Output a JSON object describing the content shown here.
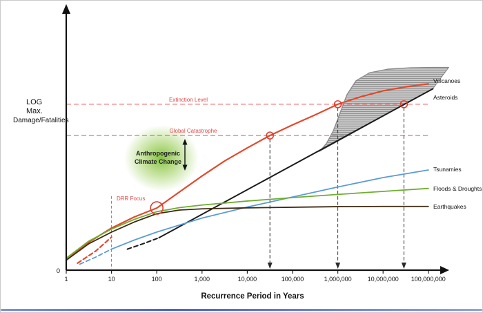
{
  "chart_data": {
    "type": "line",
    "title": "",
    "xlabel": "Recurrence Period in Years",
    "ylabel": "LOG Max. Damage/Fatalities",
    "ylabel_lines": [
      "LOG",
      "Max.",
      "Damage/Fatalities"
    ],
    "y_origin_label": "0",
    "x_scale": "log10",
    "x_tick_labels": [
      "1",
      "10",
      "100",
      "1,000",
      "10,000",
      "100,000",
      "1,000,000",
      "10,000,000",
      "100,000,000"
    ],
    "series": [
      {
        "name": "Anthropogenic Climate Change",
        "color": "#e2492c",
        "width": 2.2,
        "label_v": null,
        "dash_lead": [
          [
            0.25,
            0.035
          ],
          [
            0.65,
            0.095
          ],
          [
            1.0,
            0.165
          ]
        ],
        "points": [
          [
            0,
            0.05
          ],
          [
            0.5,
            0.14
          ],
          [
            1,
            0.21
          ],
          [
            1.5,
            0.265
          ],
          [
            2,
            0.31
          ],
          [
            2.5,
            0.39
          ],
          [
            3,
            0.47
          ],
          [
            3.5,
            0.545
          ],
          [
            4,
            0.61
          ],
          [
            4.5,
            0.672
          ],
          [
            5,
            0.725
          ],
          [
            5.5,
            0.775
          ],
          [
            6,
            0.828
          ],
          [
            6.5,
            0.865
          ],
          [
            7,
            0.895
          ],
          [
            7.5,
            0.915
          ],
          [
            8,
            0.93
          ]
        ]
      },
      {
        "name": "Volcanoes",
        "color": "#8a8a8a",
        "width": 1.4,
        "label_v": 0.945,
        "points": [
          [
            5.6,
            0.593
          ],
          [
            5.75,
            0.633
          ],
          [
            5.9,
            0.695
          ],
          [
            6.05,
            0.785
          ],
          [
            6.2,
            0.875
          ],
          [
            6.4,
            0.945
          ],
          [
            6.7,
            0.985
          ],
          [
            7.1,
            1.003
          ],
          [
            7.6,
            1.01
          ],
          [
            8.1,
            1.012
          ],
          [
            8.45,
            1.012
          ]
        ],
        "area_close": [
          [
            8.1,
            0.905
          ]
        ]
      },
      {
        "name": "Asteroids",
        "color": "#1c1c1c",
        "width": 2,
        "label_v": 0.862,
        "dash_lead": [
          [
            1.35,
            0.105
          ],
          [
            1.7,
            0.132
          ],
          [
            2.05,
            0.162
          ]
        ],
        "points": [
          [
            2.05,
            0.162
          ],
          [
            8.1,
            0.905
          ]
        ]
      },
      {
        "name": "Tsunamies",
        "color": "#5b9bd5",
        "width": 1.8,
        "label_v": 0.503,
        "dash_lead": [
          [
            0.3,
            0.03
          ],
          [
            0.65,
            0.065
          ],
          [
            1,
            0.105
          ]
        ],
        "points": [
          [
            1,
            0.105
          ],
          [
            1.5,
            0.15
          ],
          [
            2,
            0.19
          ],
          [
            3,
            0.26
          ],
          [
            4,
            0.315
          ],
          [
            5,
            0.365
          ],
          [
            6,
            0.415
          ],
          [
            7,
            0.462
          ],
          [
            8,
            0.5
          ]
        ]
      },
      {
        "name": "Floods & Droughts",
        "color": "#6fad2f",
        "width": 1.8,
        "label_v": 0.407,
        "points": [
          [
            0,
            0.06
          ],
          [
            0.5,
            0.145
          ],
          [
            1,
            0.205
          ],
          [
            1.5,
            0.253
          ],
          [
            2,
            0.292
          ],
          [
            2.5,
            0.312
          ],
          [
            3,
            0.325
          ],
          [
            4,
            0.345
          ],
          [
            5,
            0.362
          ],
          [
            6,
            0.378
          ],
          [
            7,
            0.393
          ],
          [
            8,
            0.408
          ]
        ]
      },
      {
        "name": "Earthquakes",
        "color": "#3e2a12",
        "width": 1.8,
        "label_v": 0.317,
        "points": [
          [
            0,
            0.05
          ],
          [
            0.5,
            0.132
          ],
          [
            1,
            0.19
          ],
          [
            1.5,
            0.24
          ],
          [
            2,
            0.282
          ],
          [
            2.5,
            0.3
          ],
          [
            3,
            0.306
          ],
          [
            4,
            0.311
          ],
          [
            5,
            0.314
          ],
          [
            6,
            0.317
          ],
          [
            7,
            0.318
          ],
          [
            8,
            0.318
          ]
        ]
      }
    ],
    "thresholds": [
      {
        "label": "Extinction Level",
        "value": 0.828,
        "color": "#e8555a"
      },
      {
        "label": "Global Catastrophe",
        "value": 0.672,
        "color": "#e8555a"
      }
    ],
    "markers": [
      {
        "x": 2,
        "v": 0.31,
        "r": 9
      },
      {
        "x": 4.5,
        "v": 0.672,
        "r": 5
      },
      {
        "x": 6,
        "v": 0.828,
        "r": 5
      },
      {
        "x": 7.46,
        "v": 0.828,
        "r": 5
      }
    ],
    "guides": [
      {
        "x": 4.5,
        "v_top": 0.672
      },
      {
        "x": 6,
        "v_top": 0.828
      },
      {
        "x": 7.46,
        "v_top": 0.828
      }
    ],
    "drr": {
      "label": "DRR Focus",
      "line_x": 1,
      "v_top": 0.37
    },
    "blob": {
      "label_lines": [
        "Anthropogenic",
        "Climate Change"
      ]
    },
    "accent_colors": {
      "highlight_red": "#e03c2e",
      "threshold_red": "#e8555a",
      "glow_green": "#8cc63f"
    }
  }
}
